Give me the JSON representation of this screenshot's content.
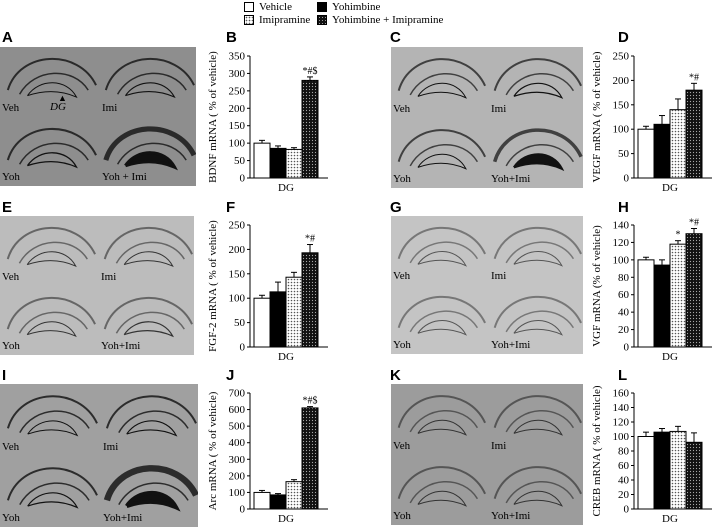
{
  "legend": {
    "vehicle": "Vehicle",
    "imipramine": "Imipramine",
    "yohimbine": "Yohimbine",
    "yoh_imi": "Yohimbine + Imipramine"
  },
  "colors": {
    "vehicle": "#ffffff",
    "imipramine": "dotted-light",
    "yohimbine": "#000000",
    "yoh_imi": "dotted-dark"
  },
  "image_panels": [
    {
      "letter": "A",
      "labels": [
        "Veh",
        "Imi",
        "Yoh",
        "Yoh + Imi"
      ],
      "annotation": "DG"
    },
    {
      "letter": "C",
      "labels": [
        "Veh",
        "Imi",
        "Yoh",
        "Yoh+Imi"
      ]
    },
    {
      "letter": "E",
      "labels": [
        "Veh",
        "Imi",
        "Yoh",
        "Yoh+Imi"
      ]
    },
    {
      "letter": "G",
      "labels": [
        "Veh",
        "Imi",
        "Yoh",
        "Yoh+Imi"
      ]
    },
    {
      "letter": "I",
      "labels": [
        "Veh",
        "Imi",
        "Yoh",
        "Yoh+Imi"
      ]
    },
    {
      "letter": "K",
      "labels": [
        "Veh",
        "Imi",
        "Yoh",
        "Yoh+Imi"
      ]
    }
  ],
  "chart_data": [
    {
      "type": "bar",
      "panel": "B",
      "ylabel": "BDNF mRNA ( % of vehicle)",
      "xlabel": "DG",
      "ylim": [
        0,
        350
      ],
      "yticks": [
        0,
        50,
        100,
        150,
        200,
        250,
        300,
        350
      ],
      "series": [
        "Vehicle",
        "Yohimbine",
        "Imipramine",
        "Yohimbine + Imipramine"
      ],
      "values": [
        100,
        85,
        82,
        280
      ],
      "errors": [
        8,
        7,
        5,
        10
      ],
      "sig": [
        "",
        "",
        "",
        "*#$"
      ]
    },
    {
      "type": "bar",
      "panel": "D",
      "ylabel": "VEGF mRNA ( % of vehicle)",
      "xlabel": "DG",
      "ylim": [
        0,
        250
      ],
      "yticks": [
        0,
        50,
        100,
        150,
        200,
        250
      ],
      "series": [
        "Vehicle",
        "Yohimbine",
        "Imipramine",
        "Yohimbine + Imipramine"
      ],
      "values": [
        100,
        110,
        140,
        180
      ],
      "errors": [
        6,
        18,
        22,
        14
      ],
      "sig": [
        "",
        "",
        "",
        "*#"
      ]
    },
    {
      "type": "bar",
      "panel": "F",
      "ylabel": "FGF-2 mRNA ( % of vehicle)",
      "xlabel": "DG",
      "ylim": [
        0,
        250
      ],
      "yticks": [
        0,
        50,
        100,
        150,
        200,
        250
      ],
      "series": [
        "Vehicle",
        "Yohimbine",
        "Imipramine",
        "Yohimbine + Imipramine"
      ],
      "values": [
        100,
        113,
        143,
        193
      ],
      "errors": [
        6,
        20,
        10,
        17
      ],
      "sig": [
        "",
        "",
        "",
        "*#"
      ]
    },
    {
      "type": "bar",
      "panel": "H",
      "ylabel": "VGF mRNA (% of vehicle)",
      "xlabel": "DG",
      "ylim": [
        0,
        140
      ],
      "yticks": [
        0,
        20,
        40,
        60,
        80,
        100,
        120,
        140
      ],
      "series": [
        "Vehicle",
        "Yohimbine",
        "Imipramine",
        "Yohimbine + Imipramine"
      ],
      "values": [
        100,
        94,
        118,
        130
      ],
      "errors": [
        3,
        6,
        4,
        6
      ],
      "sig": [
        "",
        "",
        "*",
        "*#"
      ]
    },
    {
      "type": "bar",
      "panel": "J",
      "ylabel": "Arc mRNA ( % of vehicle)",
      "xlabel": "DG",
      "ylim": [
        0,
        700
      ],
      "yticks": [
        0,
        100,
        200,
        300,
        400,
        500,
        600,
        700
      ],
      "series": [
        "Vehicle",
        "Yohimbine",
        "Imipramine",
        "Yohimbine + Imipramine"
      ],
      "values": [
        100,
        85,
        165,
        610
      ],
      "errors": [
        12,
        8,
        12,
        8
      ],
      "sig": [
        "",
        "",
        "",
        "*#$"
      ]
    },
    {
      "type": "bar",
      "panel": "L",
      "ylabel": "CREB mRNA ( % of vehicle)",
      "xlabel": "DG",
      "ylim": [
        0,
        160
      ],
      "yticks": [
        0,
        20,
        40,
        60,
        80,
        100,
        120,
        140,
        160
      ],
      "series": [
        "Vehicle",
        "Yohimbine",
        "Imipramine",
        "Yohimbine + Imipramine"
      ],
      "values": [
        100,
        106,
        107,
        92
      ],
      "errors": [
        6,
        5,
        7,
        13
      ],
      "sig": [
        "",
        "",
        "",
        ""
      ]
    }
  ]
}
